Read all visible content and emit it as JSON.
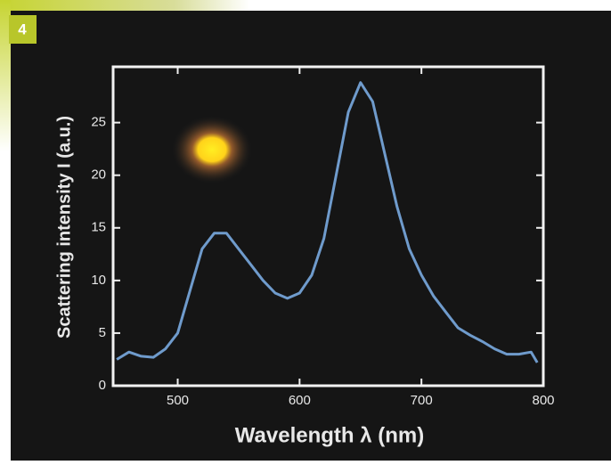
{
  "figure_label": "4",
  "chart_data": {
    "type": "line",
    "xlabel": "Wavelength λ (nm)",
    "ylabel": "Scattering intensity I (a.u.)",
    "x": [
      450,
      460,
      470,
      480,
      490,
      500,
      510,
      520,
      530,
      540,
      550,
      560,
      570,
      580,
      590,
      600,
      610,
      620,
      630,
      640,
      650,
      660,
      670,
      680,
      690,
      700,
      710,
      720,
      730,
      740,
      750,
      760,
      770,
      780,
      790,
      795
    ],
    "values": [
      2.5,
      3.2,
      2.8,
      2.7,
      3.5,
      5,
      9,
      13,
      14.5,
      14.5,
      13,
      11.5,
      10,
      8.8,
      8.3,
      8.8,
      10.5,
      14,
      20,
      26,
      28.8,
      27,
      22,
      17,
      13,
      10.5,
      8.5,
      7,
      5.5,
      4.8,
      4.2,
      3.5,
      3,
      3,
      3.2,
      2.2
    ],
    "color": "#6f9bcc",
    "xlim": [
      447,
      800
    ],
    "xticks": [
      500,
      600,
      700,
      800
    ],
    "ylim": [
      0,
      30.3
    ],
    "yticks": [
      0,
      5,
      10,
      15,
      20,
      25
    ]
  }
}
